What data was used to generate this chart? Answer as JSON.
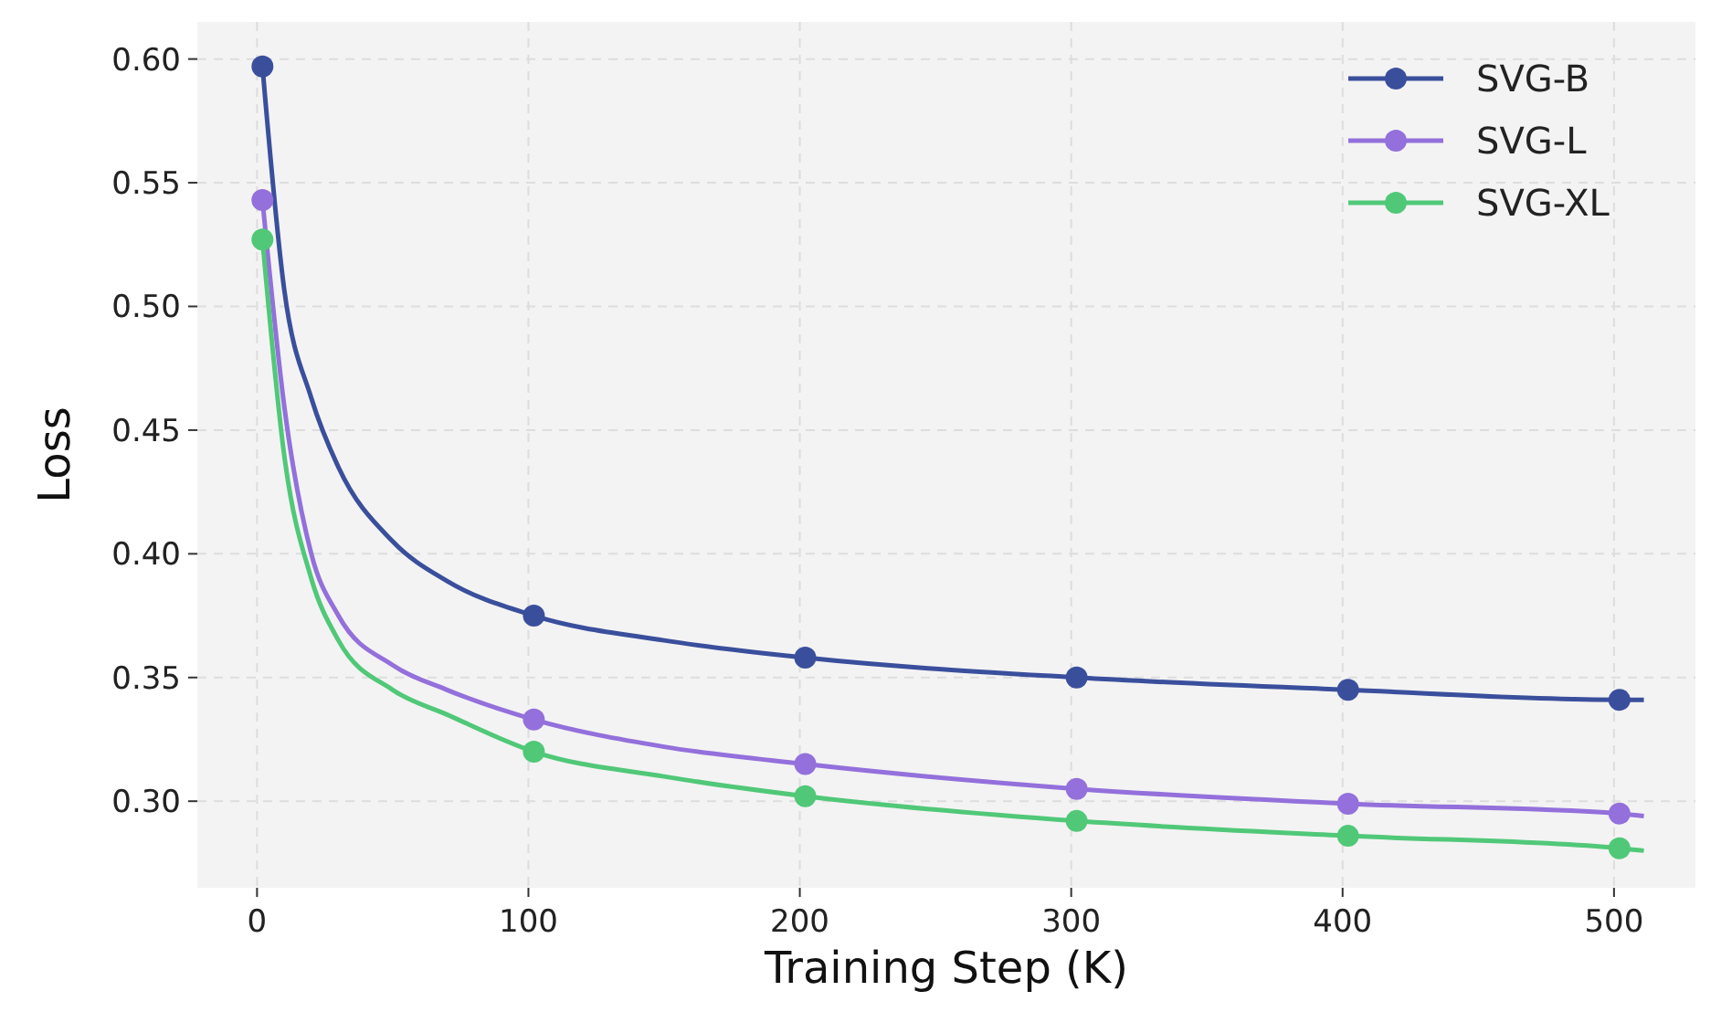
{
  "chart_data": {
    "type": "line",
    "xlabel": "Training Step (K)",
    "ylabel": "Loss",
    "xlim": [
      -22,
      530
    ],
    "ylim": [
      0.265,
      0.615
    ],
    "xticks": [
      0,
      100,
      200,
      300,
      400,
      500
    ],
    "yticks": [
      {
        "value": 0.3,
        "label": "0.30"
      },
      {
        "value": 0.35,
        "label": "0.35"
      },
      {
        "value": 0.4,
        "label": "0.40"
      },
      {
        "value": 0.45,
        "label": "0.45"
      },
      {
        "value": 0.5,
        "label": "0.50"
      },
      {
        "value": 0.55,
        "label": "0.55"
      },
      {
        "value": 0.6,
        "label": "0.60"
      }
    ],
    "grid": true,
    "legend": "top right",
    "marker": "circle",
    "line_style": "solid",
    "series": [
      {
        "name": "SVG-B",
        "marker": "none",
        "color": "#3a4f9c",
        "x": [
          2,
          10,
          20,
          30,
          50,
          70,
          102,
          150,
          202,
          302,
          402,
          502,
          511
        ],
        "values": [
          0.597,
          0.507,
          0.463,
          0.435,
          0.405,
          0.389,
          0.375,
          0.365,
          0.358,
          0.35,
          0.345,
          0.341,
          0.341
        ]
      },
      {
        "name": "SVG-L",
        "marker": "none",
        "color": "#9370db",
        "x": [
          2,
          10,
          20,
          30,
          50,
          70,
          102,
          150,
          202,
          302,
          402,
          502,
          511
        ],
        "values": [
          0.543,
          0.46,
          0.4,
          0.375,
          0.355,
          0.345,
          0.333,
          0.322,
          0.315,
          0.305,
          0.299,
          0.295,
          0.294
        ]
      },
      {
        "name": "SVG-XL",
        "marker": "none",
        "color": "#50c878",
        "x": [
          2,
          10,
          20,
          30,
          50,
          70,
          102,
          150,
          202,
          302,
          402,
          502,
          511
        ],
        "values": [
          0.527,
          0.44,
          0.39,
          0.365,
          0.345,
          0.335,
          0.32,
          0.31,
          0.302,
          0.292,
          0.286,
          0.281,
          0.28
        ]
      },
      {
        "type": "scatter",
        "color": "#3a4f9c",
        "x": [
          2,
          102,
          202,
          302,
          402,
          502
        ],
        "values": [
          0.597,
          0.375,
          0.358,
          0.35,
          0.345,
          0.341
        ]
      },
      {
        "type": "scatter",
        "color": "#9370db",
        "x": [
          2,
          102,
          202,
          302,
          402,
          502
        ],
        "values": [
          0.543,
          0.333,
          0.315,
          0.305,
          0.299,
          0.295
        ]
      },
      {
        "type": "scatter",
        "color": "#50c878",
        "x": [
          2,
          102,
          202,
          302,
          402,
          502
        ],
        "values": [
          0.527,
          0.32,
          0.302,
          0.292,
          0.286,
          0.281
        ]
      }
    ]
  }
}
